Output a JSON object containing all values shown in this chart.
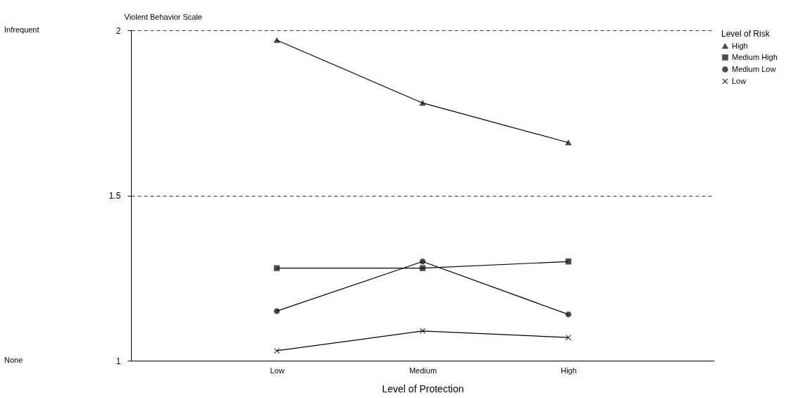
{
  "chart_data": {
    "type": "line",
    "xlabel": "Level of Protection",
    "ylabel": "Violent Behavior Scale",
    "legend_title": "Level of Risk",
    "annotations": [
      "Infrequent",
      "None"
    ],
    "categories": [
      "Low",
      "Medium",
      "High"
    ],
    "series": [
      {
        "name": "High",
        "color": "#000000",
        "marker": "triangle",
        "values": [
          1.97,
          1.78,
          1.66
        ]
      },
      {
        "name": "Medium High",
        "color": "#000000",
        "marker": "square",
        "values": [
          1.28,
          1.28,
          1.3
        ]
      },
      {
        "name": "Medium Low",
        "color": "#000000",
        "marker": "circle",
        "values": [
          1.15,
          1.3,
          1.14
        ]
      },
      {
        "name": "Low",
        "color": "#000000",
        "marker": "cross",
        "values": [
          1.03,
          1.09,
          1.07
        ]
      }
    ],
    "ylim": [
      1,
      2
    ],
    "yticks": [
      1,
      1.5,
      2
    ],
    "grid": "y",
    "line_style": "solid",
    "legend": "top right"
  }
}
